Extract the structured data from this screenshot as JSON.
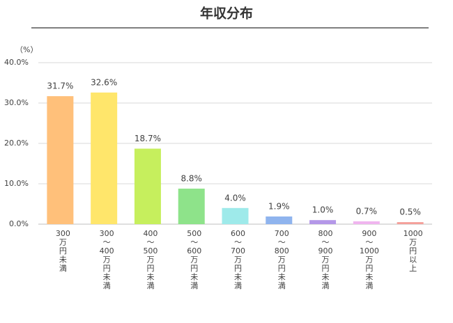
{
  "chart_data": {
    "type": "bar",
    "title": "年収分布",
    "y_label": "（%）",
    "categories": [
      "300万円未満",
      "300〜400万円未満",
      "400〜500万円未満",
      "500〜600万円未満",
      "600〜700万円未満",
      "700〜800万円未満",
      "800〜900万円未満",
      "900〜1000万円未満",
      "1000万円以上"
    ],
    "values": [
      31.7,
      32.6,
      18.7,
      8.8,
      4.0,
      1.9,
      1.0,
      0.7,
      0.5
    ],
    "value_labels": [
      "31.7%",
      "32.6%",
      "18.7%",
      "8.8%",
      "4.0%",
      "1.9%",
      "1.0%",
      "0.7%",
      "0.5%"
    ],
    "colors": [
      "#ffc07a",
      "#ffe66b",
      "#c6ef5d",
      "#8ee38a",
      "#9eeaea",
      "#8fb4ee",
      "#b497e8",
      "#f0b5ef",
      "#f4a09a"
    ],
    "ylim": [
      0,
      40
    ],
    "yticks": [
      {
        "value": 0,
        "label": "0.0%"
      },
      {
        "value": 10,
        "label": "10.0%"
      },
      {
        "value": 20,
        "label": "20.0%"
      },
      {
        "value": 30,
        "label": "30.0%"
      },
      {
        "value": 40,
        "label": "40.0%"
      }
    ],
    "grid": true
  }
}
